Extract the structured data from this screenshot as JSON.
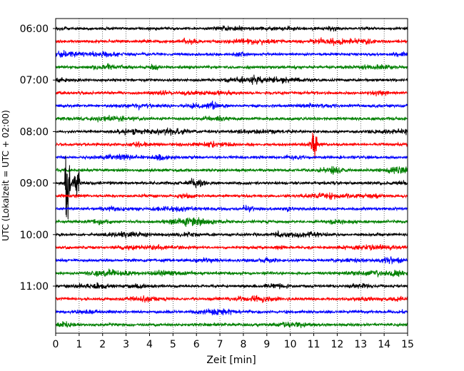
{
  "chart_data": {
    "type": "line",
    "title": "",
    "xlabel": "Zeit  [min]",
    "ylabel": "UTC (Lokalzeit = UTC + 02:00)",
    "xlim": [
      0,
      15
    ],
    "x_ticks": [
      "0",
      "1",
      "2",
      "3",
      "4",
      "5",
      "6",
      "7",
      "8",
      "9",
      "10",
      "11",
      "12",
      "13",
      "14",
      "15"
    ],
    "y_ticks": [
      "06:00",
      "07:00",
      "08:00",
      "09:00",
      "10:00",
      "11:00"
    ],
    "grid": "vertical-dotted",
    "trace_interval_minutes": 15,
    "start_time": "06:00",
    "color_cycle": [
      "#000000",
      "#ff0000",
      "#0000ff",
      "#008000"
    ],
    "events": [
      {
        "trace": "08:15",
        "x": 11.0,
        "amplitude": "large",
        "label": ""
      },
      {
        "trace": "09:00",
        "x": 0.5,
        "amplitude": "very-large",
        "label": ""
      },
      {
        "trace": "09:00",
        "x": 0.9,
        "amplitude": "large",
        "label": ""
      }
    ]
  }
}
